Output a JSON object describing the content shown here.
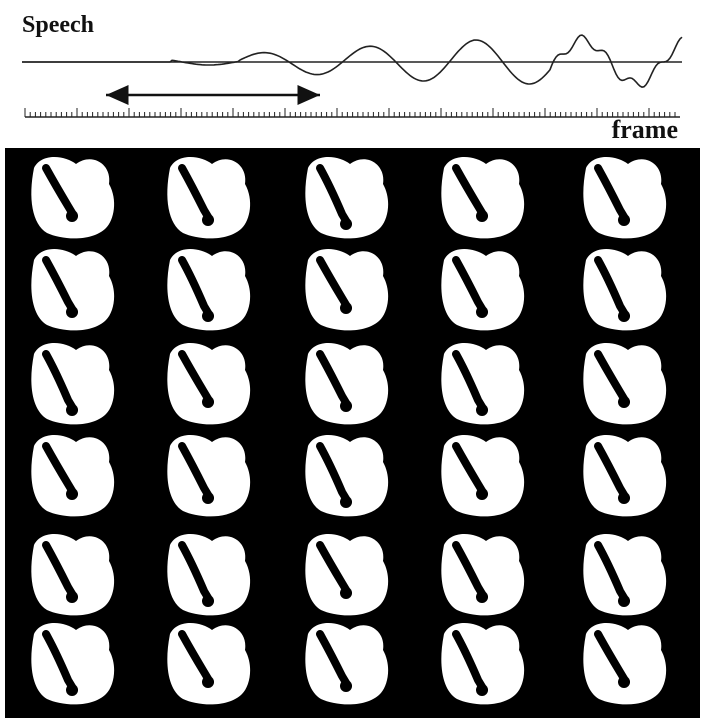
{
  "header": {
    "title": "Speech"
  },
  "axis": {
    "label": "frame"
  }
}
